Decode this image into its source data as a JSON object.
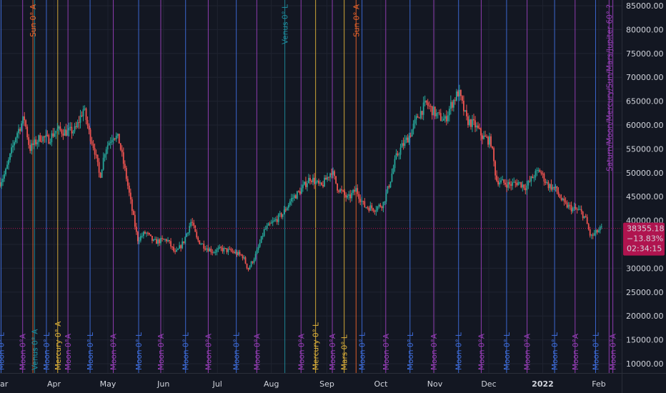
{
  "chart_data": {
    "type": "candlestick",
    "y_ticks": [
      "85000.00",
      "80000.00",
      "75000.00",
      "70000.00",
      "65000.00",
      "60000.00",
      "55000.00",
      "50000.00",
      "45000.00",
      "40000.00",
      "35000.00",
      "30000.00",
      "25000.00",
      "20000.00",
      "15000.00",
      "10000.00"
    ],
    "ylim": [
      8000,
      87500
    ],
    "x_ticks": [
      {
        "label": "ar",
        "t": 0
      },
      {
        "label": "Apr",
        "t": 1.0
      },
      {
        "label": "May",
        "t": 2.0
      },
      {
        "label": "Jun",
        "t": 3.03
      },
      {
        "label": "Jul",
        "t": 4.03
      },
      {
        "label": "Aug",
        "t": 5.03
      },
      {
        "label": "Sep",
        "t": 6.06
      },
      {
        "label": "Oct",
        "t": 7.06
      },
      {
        "label": "Nov",
        "t": 8.06
      },
      {
        "label": "Dec",
        "t": 9.06
      },
      {
        "label": "2022",
        "t": 10.06,
        "bold": true
      },
      {
        "label": "Feb",
        "t": 11.1
      }
    ],
    "price_path": [
      [
        -0.05,
        47000
      ],
      [
        0.1,
        50000
      ],
      [
        0.3,
        58000
      ],
      [
        0.45,
        61500
      ],
      [
        0.55,
        55000
      ],
      [
        0.75,
        57500
      ],
      [
        0.9,
        57000
      ],
      [
        1.05,
        59000
      ],
      [
        1.25,
        58500
      ],
      [
        1.4,
        59000
      ],
      [
        1.55,
        63500
      ],
      [
        1.65,
        58500
      ],
      [
        1.75,
        55000
      ],
      [
        1.85,
        49000
      ],
      [
        1.95,
        55000
      ],
      [
        2.1,
        58000
      ],
      [
        2.2,
        57000
      ],
      [
        2.35,
        48500
      ],
      [
        2.45,
        42000
      ],
      [
        2.55,
        36000
      ],
      [
        2.7,
        37500
      ],
      [
        2.85,
        35500
      ],
      [
        3.1,
        36000
      ],
      [
        3.25,
        33000
      ],
      [
        3.4,
        35500
      ],
      [
        3.55,
        40000
      ],
      [
        3.65,
        36000
      ],
      [
        3.8,
        34500
      ],
      [
        3.95,
        33500
      ],
      [
        4.1,
        34000
      ],
      [
        4.3,
        33500
      ],
      [
        4.5,
        32500
      ],
      [
        4.6,
        29800
      ],
      [
        4.75,
        33000
      ],
      [
        4.9,
        38000
      ],
      [
        5.1,
        40000
      ],
      [
        5.25,
        41500
      ],
      [
        5.4,
        44500
      ],
      [
        5.55,
        46000
      ],
      [
        5.75,
        49000
      ],
      [
        5.95,
        47000
      ],
      [
        6.15,
        50500
      ],
      [
        6.25,
        47000
      ],
      [
        6.45,
        44500
      ],
      [
        6.6,
        46500
      ],
      [
        6.75,
        43000
      ],
      [
        6.95,
        42500
      ],
      [
        7.1,
        43500
      ],
      [
        7.2,
        47000
      ],
      [
        7.35,
        53500
      ],
      [
        7.45,
        55500
      ],
      [
        7.6,
        58000
      ],
      [
        7.75,
        62000
      ],
      [
        7.9,
        64500
      ],
      [
        8.1,
        62000
      ],
      [
        8.25,
        61000
      ],
      [
        8.35,
        64000
      ],
      [
        8.5,
        67000
      ],
      [
        8.65,
        61000
      ],
      [
        8.8,
        60000
      ],
      [
        8.95,
        57500
      ],
      [
        9.1,
        56500
      ],
      [
        9.2,
        48500
      ],
      [
        9.3,
        48000
      ],
      [
        9.45,
        47500
      ],
      [
        9.6,
        48000
      ],
      [
        9.75,
        47000
      ],
      [
        9.9,
        49500
      ],
      [
        10.0,
        50500
      ],
      [
        10.15,
        47500
      ],
      [
        10.3,
        46500
      ],
      [
        10.45,
        43500
      ],
      [
        10.6,
        42500
      ],
      [
        10.75,
        42000
      ],
      [
        10.85,
        40500
      ],
      [
        10.95,
        36500
      ],
      [
        11.05,
        37500
      ],
      [
        11.15,
        38355
      ]
    ],
    "vertical_lines": [
      {
        "t": 0.02,
        "label": "Moon 0° L",
        "kind": "blue",
        "pos": "bottom"
      },
      {
        "t": 0.42,
        "label": "Moon 0°A",
        "kind": "purple",
        "pos": "bottom"
      },
      {
        "t": 0.61,
        "label": "Sun 0° A",
        "kind": "orange",
        "pos": "top"
      },
      {
        "t": 0.64,
        "label": "Venus 0° A",
        "kind": "teal",
        "pos": "bottom"
      },
      {
        "t": 0.86,
        "label": "Moon 0° L",
        "kind": "blue",
        "pos": "bottom"
      },
      {
        "t": 1.07,
        "label": "Mercury 0° A",
        "kind": "yellow",
        "pos": "bottom"
      },
      {
        "t": 1.26,
        "label": "Moon 0°A",
        "kind": "purple",
        "pos": "bottom"
      },
      {
        "t": 1.67,
        "label": "Moon 0° L",
        "kind": "blue",
        "pos": "bottom"
      },
      {
        "t": 2.1,
        "label": "Moon 0°A",
        "kind": "purple",
        "pos": "bottom"
      },
      {
        "t": 2.57,
        "label": "Moon 0° L",
        "kind": "blue",
        "pos": "bottom"
      },
      {
        "t": 2.98,
        "label": "Moon 0°A",
        "kind": "purple",
        "pos": "bottom"
      },
      {
        "t": 3.44,
        "label": "Moon 0° L",
        "kind": "blue",
        "pos": "bottom"
      },
      {
        "t": 3.86,
        "label": "Moon 0°A",
        "kind": "purple",
        "pos": "bottom"
      },
      {
        "t": 4.38,
        "label": "Moon 0° L",
        "kind": "blue",
        "pos": "bottom"
      },
      {
        "t": 4.76,
        "label": "Moon 0°A",
        "kind": "purple",
        "pos": "bottom"
      },
      {
        "t": 5.28,
        "label": "Venus 0° L",
        "kind": "teal",
        "pos": "top"
      },
      {
        "t": 5.58,
        "label": "Moon 0°A",
        "kind": "purple",
        "pos": "bottom"
      },
      {
        "t": 5.85,
        "label": "Mercury 0° L",
        "kind": "yellow",
        "pos": "bottom"
      },
      {
        "t": 6.16,
        "label": "Moon 0°A",
        "kind": "purple",
        "pos": "bottom"
      },
      {
        "t": 6.38,
        "label": "Mars 0° L",
        "kind": "yellow",
        "pos": "bottom"
      },
      {
        "t": 6.6,
        "label": "Sun 0° A",
        "kind": "orange",
        "pos": "top"
      },
      {
        "t": 6.71,
        "label": "Moon 0° L",
        "kind": "blue",
        "pos": "bottom"
      },
      {
        "t": 7.15,
        "label": "Moon 0°A",
        "kind": "purple",
        "pos": "bottom"
      },
      {
        "t": 7.6,
        "label": "Moon 0° L",
        "kind": "blue",
        "pos": "bottom"
      },
      {
        "t": 8.04,
        "label": "Moon 0°A",
        "kind": "purple",
        "pos": "bottom"
      },
      {
        "t": 8.5,
        "label": "Moon 0° L",
        "kind": "blue",
        "pos": "bottom"
      },
      {
        "t": 8.92,
        "label": "Moon 0°A",
        "kind": "purple",
        "pos": "bottom"
      },
      {
        "t": 9.39,
        "label": "Moon 0° L",
        "kind": "blue",
        "pos": "bottom"
      },
      {
        "t": 9.77,
        "label": "Moon 0°A",
        "kind": "purple",
        "pos": "bottom"
      },
      {
        "t": 10.28,
        "label": "Moon 0° L",
        "kind": "blue",
        "pos": "bottom"
      },
      {
        "t": 10.66,
        "label": "Moon 0°A",
        "kind": "purple",
        "pos": "bottom"
      },
      {
        "t": 11.04,
        "label": "Moon 0° L",
        "kind": "blue",
        "pos": "bottom"
      },
      {
        "t": 11.29,
        "label": "Saturn/Moon/Mercury/Sun/Mars/Jupiter 60° ?",
        "kind": "purple",
        "pos": "top"
      },
      {
        "t": 11.36,
        "label": "Moon 0°A",
        "kind": "purple",
        "pos": "bottom"
      }
    ],
    "last_price": {
      "price": 38355.18,
      "price_text": "38355.18",
      "change_text": "−13.83%",
      "countdown_text": "02:34:15"
    },
    "colors": {
      "background": "#131722",
      "up": "#26a69a",
      "down": "#ef5350",
      "blue": "#3f6fe0",
      "purple": "#9c3fbe",
      "orange": "#f0652a",
      "teal": "#1f8fa0",
      "yellow": "#e3b53a",
      "price_badge": "#b0144f",
      "axis_text": "#d1d4dc"
    }
  }
}
